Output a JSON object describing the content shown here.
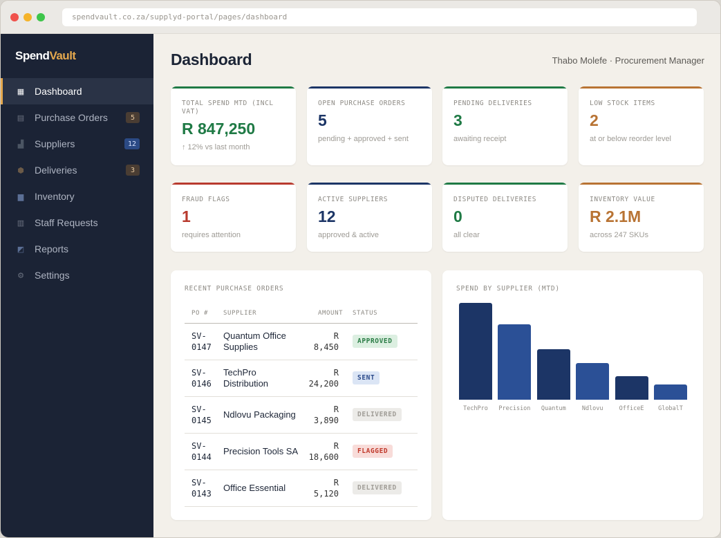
{
  "browser": {
    "url": "spendvault.co.za/supplyd-portal/pages/dashboard"
  },
  "brand": {
    "part1": "Spend",
    "part2": "Vault"
  },
  "sidebar": {
    "items": [
      {
        "label": "Dashboard",
        "icon": "grid-icon",
        "active": true
      },
      {
        "label": "Purchase Orders",
        "icon": "document-icon",
        "badge": "5"
      },
      {
        "label": "Suppliers",
        "icon": "factory-icon",
        "badge": "12"
      },
      {
        "label": "Deliveries",
        "icon": "box-icon",
        "badge": "3"
      },
      {
        "label": "Inventory",
        "icon": "bar-chart-icon"
      },
      {
        "label": "Staff Requests",
        "icon": "clipboard-icon"
      },
      {
        "label": "Reports",
        "icon": "line-chart-icon"
      },
      {
        "label": "Settings",
        "icon": "gear-icon"
      }
    ]
  },
  "header": {
    "title": "Dashboard",
    "user": "Thabo Molefe · Procurement Manager"
  },
  "kpis": [
    {
      "label": "TOTAL SPEND MTD (INCL VAT)",
      "value": "R 847,250",
      "sub": "↑ 12% vs last month",
      "color": "#1f7a45"
    },
    {
      "label": "OPEN PURCHASE ORDERS",
      "value": "5",
      "sub": "pending + approved + sent",
      "color": "#1c3566"
    },
    {
      "label": "PENDING DELIVERIES",
      "value": "3",
      "sub": "awaiting receipt",
      "color": "#1f7a45"
    },
    {
      "label": "LOW STOCK ITEMS",
      "value": "2",
      "sub": "at or below reorder level",
      "color": "#b87333"
    },
    {
      "label": "FRAUD FLAGS",
      "value": "1",
      "sub": "requires attention",
      "color": "#b83a2e"
    },
    {
      "label": "ACTIVE SUPPLIERS",
      "value": "12",
      "sub": "approved & active",
      "color": "#1c3566"
    },
    {
      "label": "DISPUTED DELIVERIES",
      "value": "0",
      "sub": "all clear",
      "color": "#1f7a45"
    },
    {
      "label": "INVENTORY VALUE",
      "value": "R 2.1M",
      "sub": "across 247 SKUs",
      "color": "#b87333"
    }
  ],
  "orders": {
    "title": "RECENT PURCHASE ORDERS",
    "columns": [
      "PO #",
      "SUPPLIER",
      "AMOUNT",
      "STATUS"
    ],
    "rows": [
      {
        "po": "SV-0147",
        "supplier": "Quantum Office Supplies",
        "amount": "R 8,450",
        "status": "APPROVED",
        "status_type": "approved"
      },
      {
        "po": "SV-0146",
        "supplier": "TechPro Distribution",
        "amount": "R 24,200",
        "status": "SENT",
        "status_type": "sent"
      },
      {
        "po": "SV-0145",
        "supplier": "Ndlovu Packaging",
        "amount": "R 3,890",
        "status": "DELIVERED",
        "status_type": "delivered"
      },
      {
        "po": "SV-0144",
        "supplier": "Precision Tools SA",
        "amount": "R 18,600",
        "status": "FLAGGED",
        "status_type": "flagged"
      },
      {
        "po": "SV-0143",
        "supplier": "Office Essential",
        "amount": "R 5,120",
        "status": "DELIVERED",
        "status_type": "delivered"
      }
    ]
  },
  "chart_data": {
    "type": "bar",
    "title": "SPEND BY SUPPLIER (MTD)",
    "categories": [
      "TechPro",
      "Precision",
      "Quantum",
      "Ndlovu",
      "OfficeE",
      "GlobalT"
    ],
    "values": [
      100,
      78,
      52,
      38,
      24,
      16
    ],
    "colors": [
      "#1c3566",
      "#2b5096",
      "#1c3566",
      "#2b5096",
      "#1c3566",
      "#2b5096"
    ],
    "ylim": [
      0,
      100
    ],
    "grid": false,
    "legend": "none"
  }
}
